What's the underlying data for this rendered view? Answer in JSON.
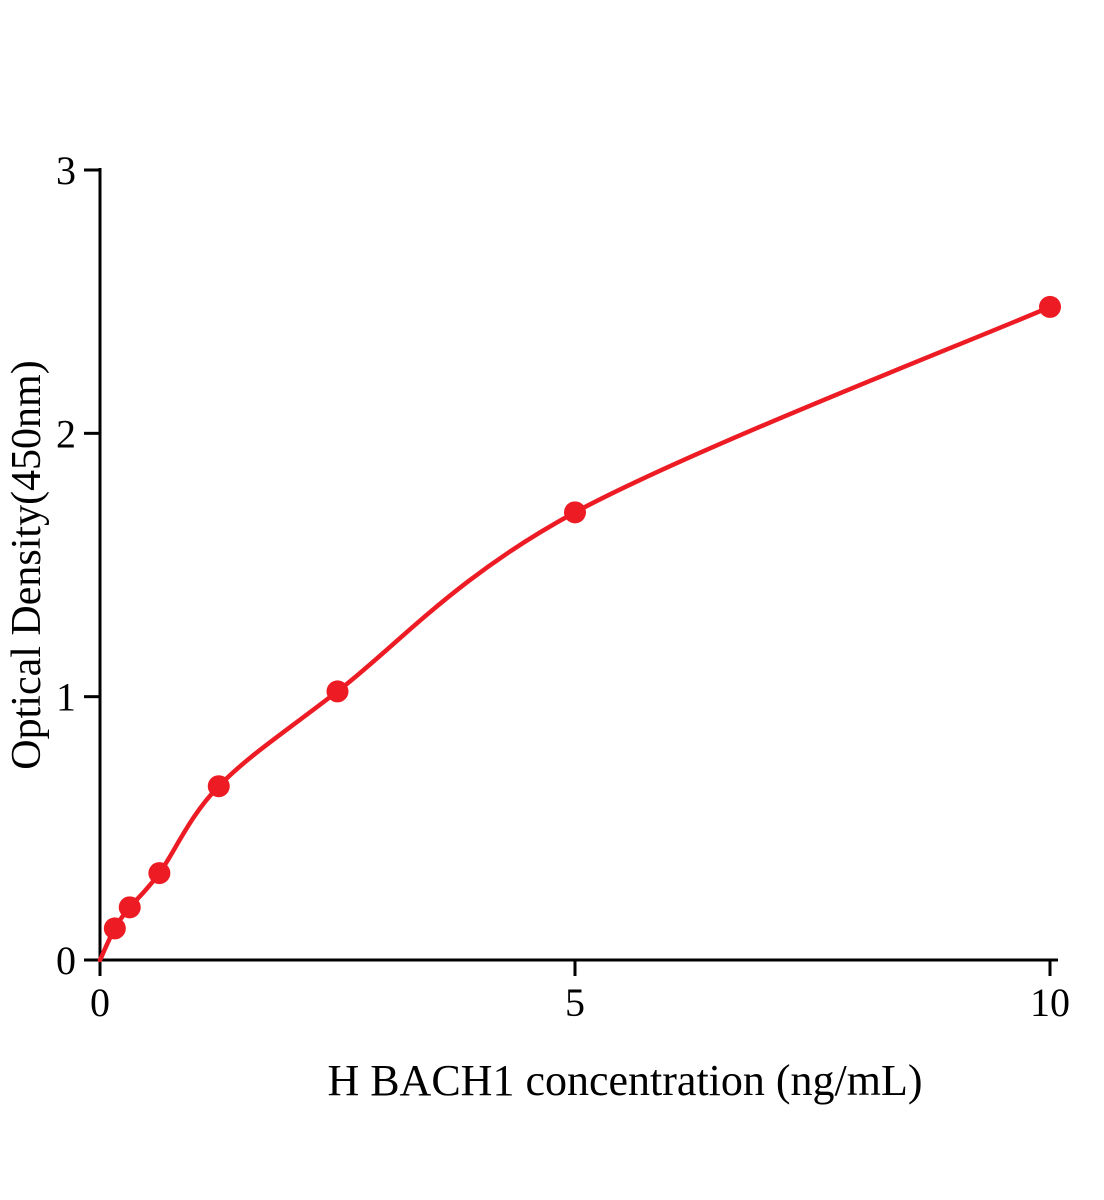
{
  "chart_data": {
    "type": "scatter",
    "title": "",
    "xlabel": "H BACH1 concentration (ng/mL)",
    "ylabel": "Optical Density(450nm)",
    "x": [
      0.156,
      0.313,
      0.625,
      1.25,
      2.5,
      5,
      10
    ],
    "y": [
      0.12,
      0.2,
      0.33,
      0.66,
      1.02,
      1.7,
      2.48
    ],
    "curve_start": [
      0,
      0
    ],
    "xticks": [
      0,
      5,
      10
    ],
    "yticks": [
      0,
      1,
      2,
      3
    ],
    "xlim": [
      0,
      10
    ],
    "ylim": [
      0,
      3
    ],
    "grid": false,
    "legend_position": "none",
    "point_color": "#ed1c24",
    "curve_color": "#ed1c24",
    "axis_color": "#000000"
  }
}
